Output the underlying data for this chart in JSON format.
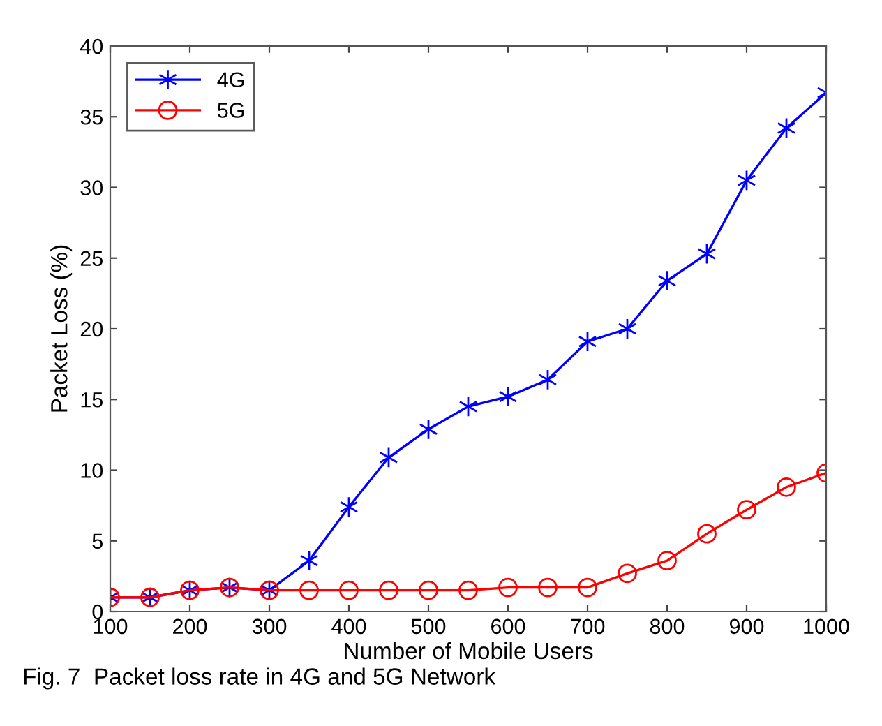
{
  "chart_data": {
    "type": "line",
    "xlabel": "Number of Mobile Users",
    "ylabel": "Packet Loss (%)",
    "x": [
      100,
      150,
      200,
      250,
      300,
      350,
      400,
      450,
      500,
      550,
      600,
      650,
      700,
      750,
      800,
      850,
      900,
      950,
      1000
    ],
    "series": [
      {
        "name": "4G",
        "color": "#0000ff",
        "marker": "cross",
        "values": [
          1.0,
          1.0,
          1.5,
          1.7,
          1.5,
          3.6,
          7.4,
          10.9,
          12.9,
          14.5,
          15.2,
          16.4,
          19.1,
          20.0,
          23.4,
          25.3,
          30.5,
          34.2,
          36.7
        ]
      },
      {
        "name": "5G",
        "color": "#ff0000",
        "marker": "circle",
        "values": [
          1.0,
          1.0,
          1.5,
          1.7,
          1.5,
          1.5,
          1.5,
          1.5,
          1.5,
          1.5,
          1.7,
          1.7,
          1.7,
          2.7,
          3.6,
          5.5,
          7.2,
          8.8,
          9.8
        ]
      }
    ],
    "xlim": [
      100,
      1000
    ],
    "xticks": [
      100,
      200,
      300,
      400,
      500,
      600,
      700,
      800,
      900,
      1000
    ],
    "ylim": [
      0,
      40
    ],
    "yticks": [
      0,
      5,
      10,
      15,
      20,
      25,
      30,
      35,
      40
    ],
    "grid": false,
    "legend": "top left",
    "line_style": "solid",
    "annotations": [
      "Fig. 7  Packet loss rate in 4G and 5G Network"
    ]
  }
}
